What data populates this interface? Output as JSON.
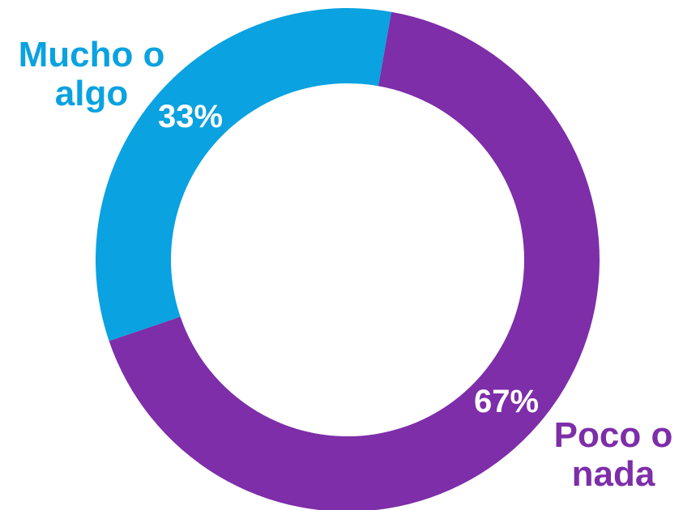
{
  "chart_data": {
    "type": "pie",
    "donut": true,
    "categories": [
      "Mucho o algo",
      "Poco o nada"
    ],
    "values": [
      33,
      67
    ],
    "data_labels": [
      "33%",
      "67%"
    ],
    "colors": [
      "#0aa2e0",
      "#7d2ea8"
    ],
    "label_lines": [
      [
        "Mucho o",
        "algo"
      ],
      [
        "Poco o",
        "nada"
      ]
    ],
    "legend": "none"
  }
}
